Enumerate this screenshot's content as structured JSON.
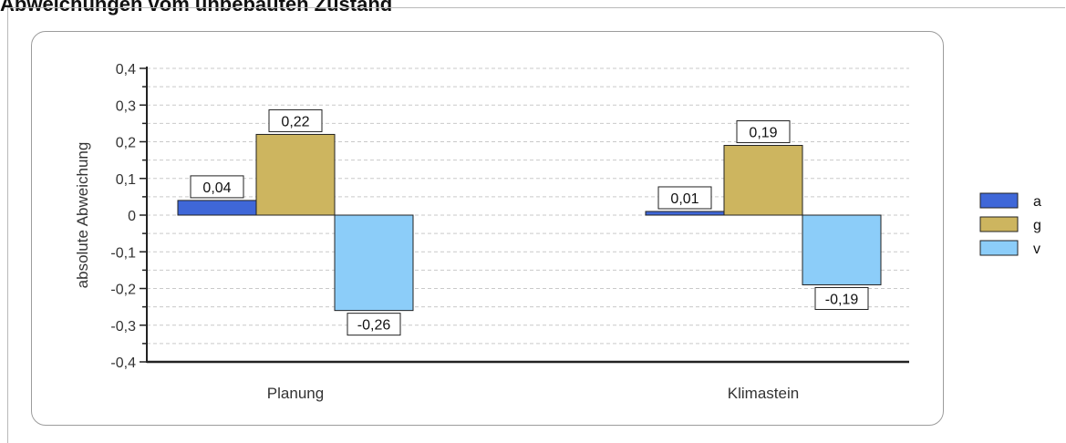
{
  "page": {
    "title": "Abweichungen vom unbebauten Zustand"
  },
  "chart_data": {
    "type": "bar",
    "title": "",
    "xlabel": "",
    "ylabel": "absolute Abweichung",
    "categories": [
      "Planung",
      "Klimastein"
    ],
    "series": [
      {
        "name": "a",
        "values": [
          0.04,
          0.01
        ],
        "labels": [
          "0,04",
          "0,01"
        ],
        "color": "#3f67d8"
      },
      {
        "name": "g",
        "values": [
          0.22,
          0.19
        ],
        "labels": [
          "0,22",
          "0,19"
        ],
        "color": "#cdb55f"
      },
      {
        "name": "v",
        "values": [
          -0.26,
          -0.19
        ],
        "labels": [
          "-0,26",
          "-0,19"
        ],
        "color": "#8ccdf9"
      }
    ],
    "ylim": [
      -0.4,
      0.4
    ],
    "yticks": [
      0.4,
      0.3,
      0.2,
      0.1,
      0,
      -0.1,
      -0.2,
      -0.3,
      -0.4
    ],
    "ytick_labels": [
      "0,4",
      "0,3",
      "0,2",
      "0,1",
      "0",
      "-0,1",
      "-0,2",
      "-0,3",
      "-0,4"
    ],
    "grid": true,
    "legend_position": "right"
  }
}
